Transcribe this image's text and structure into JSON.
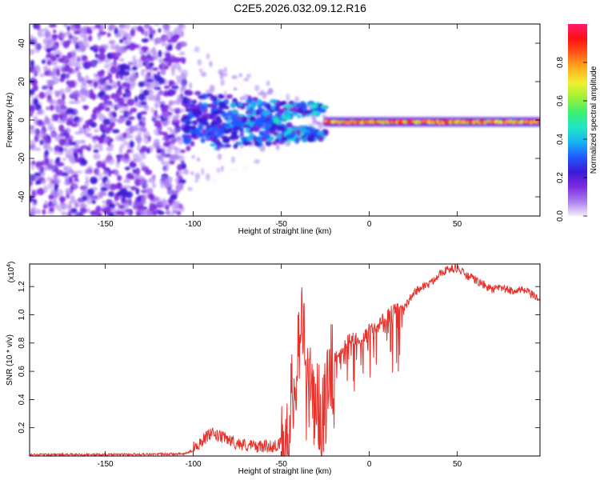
{
  "figure_title": "C2E5.2026.032.09.12.R16",
  "chart_data": [
    {
      "type": "heatmap",
      "xlabel": "Height of straight line (km)",
      "ylabel": "Frequency (Hz)",
      "xlim": [
        -193,
        97
      ],
      "ylim": [
        -50,
        50
      ],
      "x_ticks": [
        -150,
        -100,
        -50,
        0,
        50
      ],
      "y_ticks": [
        -40,
        -20,
        0,
        20,
        40
      ],
      "colorbar": {
        "label": "Normalized spectral amplitude",
        "range": [
          0,
          1
        ],
        "ticks": [
          0.0,
          0.2,
          0.4,
          0.6,
          0.8
        ],
        "colors": [
          "#f4eefa",
          "#a97cf0",
          "#7b2ae0",
          "#3b1bd6",
          "#1f59ff",
          "#18b4f2",
          "#1fe6c8",
          "#3cf070",
          "#9cf03a",
          "#f0f030",
          "#ffb020",
          "#ff5a18",
          "#ff1010",
          "#ff1a6e"
        ]
      },
      "regions": [
        {
          "x_range": [
            -193,
            -105
          ],
          "freq_range": [
            -50,
            50
          ],
          "amplitude": [
            0.05,
            0.25
          ],
          "character": "scattered noise"
        },
        {
          "x_range": [
            -105,
            -25
          ],
          "freq_range": [
            -20,
            20
          ],
          "amplitude": [
            0.15,
            0.45
          ],
          "character": "converging clusters"
        },
        {
          "x_range": [
            -25,
            97
          ],
          "freq_center": -1,
          "amplitude": [
            0.6,
            1.0
          ],
          "character": "narrow band"
        }
      ]
    },
    {
      "type": "line",
      "xlabel": "Height of straight line (km)",
      "ylabel": "SNR (10 * v/v)",
      "y_multiplier": "(x10",
      "y_multiplier_exp": "4",
      "xlim": [
        -193,
        97
      ],
      "ylim": [
        0,
        1.36
      ],
      "x_ticks": [
        -150,
        -100,
        -50,
        0,
        50
      ],
      "y_ticks": [
        0.2,
        0.4,
        0.6,
        0.8,
        1.0,
        1.2
      ],
      "color": "#e8312b",
      "series_points": {
        "x": [
          -193,
          -150,
          -105,
          -100,
          -95,
          -90,
          -85,
          -80,
          -75,
          -70,
          -65,
          -60,
          -55,
          -50,
          -45,
          -42,
          -40,
          -38,
          -36,
          -35,
          -33,
          -30,
          -28,
          -25,
          -22,
          -20,
          -15,
          -10,
          -5,
          0,
          5,
          10,
          15,
          20,
          25,
          30,
          35,
          40,
          45,
          50,
          55,
          60,
          65,
          70,
          75,
          80,
          85,
          90,
          95
        ],
        "y": [
          0.01,
          0.01,
          0.015,
          0.04,
          0.09,
          0.14,
          0.12,
          0.1,
          0.07,
          0.06,
          0.05,
          0.05,
          0.05,
          0.07,
          0.25,
          0.6,
          0.85,
          1.05,
          0.4,
          0.7,
          0.3,
          0.5,
          0.2,
          0.35,
          0.55,
          0.7,
          0.78,
          0.85,
          0.82,
          0.9,
          0.95,
          1.0,
          1.05,
          1.05,
          1.15,
          1.2,
          1.22,
          1.3,
          1.32,
          1.33,
          1.28,
          1.25,
          1.21,
          1.18,
          1.19,
          1.17,
          1.18,
          1.16,
          1.12
        ]
      }
    }
  ]
}
